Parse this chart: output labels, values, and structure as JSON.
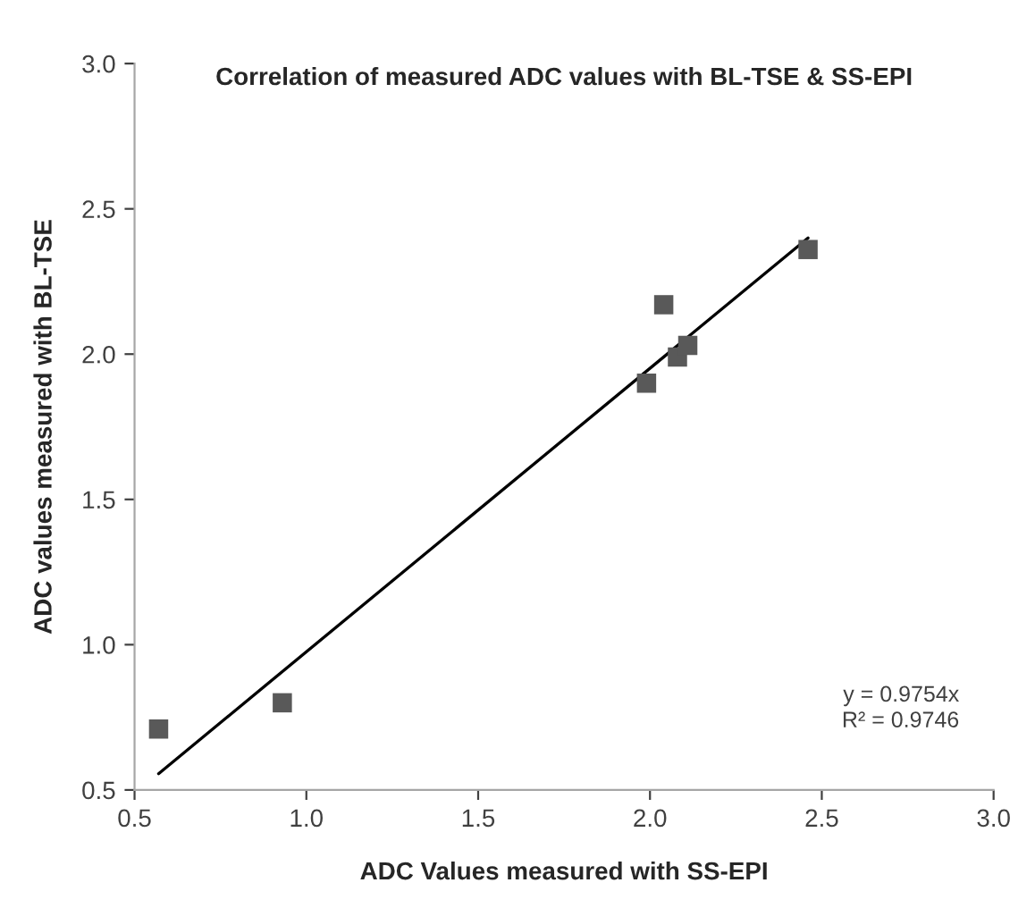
{
  "chart_data": {
    "type": "scatter",
    "title": "Correlation of measured ADC values with BL-TSE & SS-EPI",
    "xlabel": "ADC Values measured with SS-EPI",
    "ylabel": "ADC values measured with BL-TSE",
    "series": [
      {
        "color": "#595959",
        "marker": "square",
        "x": [
          0.57,
          0.93,
          1.99,
          2.04,
          2.08,
          2.11,
          2.46
        ],
        "values": [
          0.71,
          0.8,
          1.9,
          2.17,
          1.99,
          2.03,
          2.36
        ]
      },
      {
        "type": "line",
        "color": "#000000",
        "marker": "none",
        "line_style": "solid",
        "x": [
          0.57,
          2.46
        ],
        "values": [
          0.556,
          2.4
        ]
      }
    ],
    "annotations": [
      "y = 0.9754x",
      "R² = 0.9746"
    ],
    "xlim": [
      0.5,
      3.0
    ],
    "xticks": [
      {
        "value": 0.5,
        "label": "0.5"
      },
      {
        "value": 1.0,
        "label": "1.0"
      },
      {
        "value": 1.5,
        "label": "1.5"
      },
      {
        "value": 2.0,
        "label": "2.0"
      },
      {
        "value": 2.5,
        "label": "2.5"
      },
      {
        "value": 3.0,
        "label": "3.0"
      }
    ],
    "ylim": [
      0.5,
      3.0
    ],
    "yticks": [
      {
        "value": 0.5,
        "label": "0.5"
      },
      {
        "value": 1.0,
        "label": "1.0"
      },
      {
        "value": 1.5,
        "label": "1.5"
      },
      {
        "value": 2.0,
        "label": "2.0"
      },
      {
        "value": 2.5,
        "label": "2.5"
      },
      {
        "value": 3.0,
        "label": "3.0"
      }
    ],
    "grid": false,
    "legend": false
  }
}
